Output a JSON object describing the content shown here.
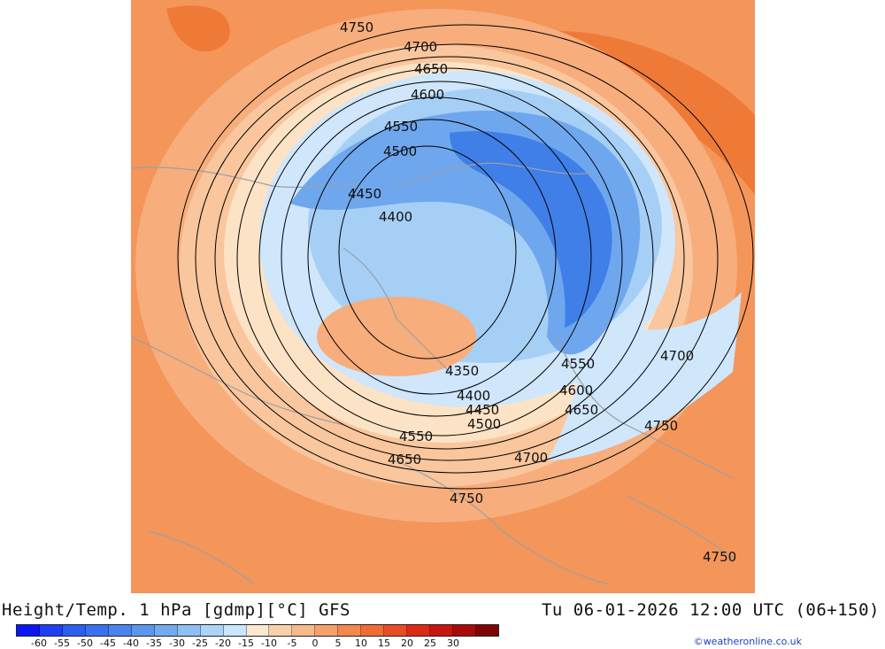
{
  "map": {
    "contour_labels": [
      "4750",
      "4700",
      "4650",
      "4600",
      "4550",
      "4500",
      "4450",
      "4400",
      "4350",
      "4550",
      "4600",
      "4650",
      "4700",
      "4750",
      "4400",
      "4450",
      "4500",
      "4550",
      "4650",
      "4700",
      "4750",
      "4750"
    ],
    "field_colors": {
      "warm_far": "#f4955a",
      "warm_mid": "#f7ad7c",
      "warm_light": "#fac69d",
      "near_zero": "#fde3c5",
      "cold_light": "#cfe6fb",
      "cold_mid": "#a6cff6",
      "cold": "#6fa7ee",
      "cold_deep": "#3f7fe7",
      "hot_patch": "#ef7a38"
    },
    "land_outline_color": "#9aa0a6",
    "contour_color": "#000000"
  },
  "footer": {
    "title": "Height/Temp. 1 hPa [gdmp][°C] GFS",
    "valid_time": "Tu 06-01-2026 12:00 UTC (06+150)",
    "credit": "©weatheronline.co.uk"
  },
  "colorbar": {
    "labels": [
      "-60",
      "-55",
      "-50",
      "-45",
      "-40",
      "-35",
      "-30",
      "-25",
      "-20",
      "-15",
      "-10",
      "-5",
      "0",
      "5",
      "10",
      "15",
      "20",
      "25",
      "30"
    ],
    "colors": [
      "#0b16f0",
      "#1f3ff2",
      "#2c5ff0",
      "#3a72ee",
      "#4a84ec",
      "#5d97ec",
      "#74abef",
      "#8fc0f3",
      "#abd4f7",
      "#c9e6fb",
      "#fbe8d0",
      "#f9d1a9",
      "#f7b98a",
      "#f5a16b",
      "#f3884d",
      "#ef6c35",
      "#e94d27",
      "#dd2a17",
      "#c8150e",
      "#a70c0a",
      "#7d0505"
    ]
  }
}
